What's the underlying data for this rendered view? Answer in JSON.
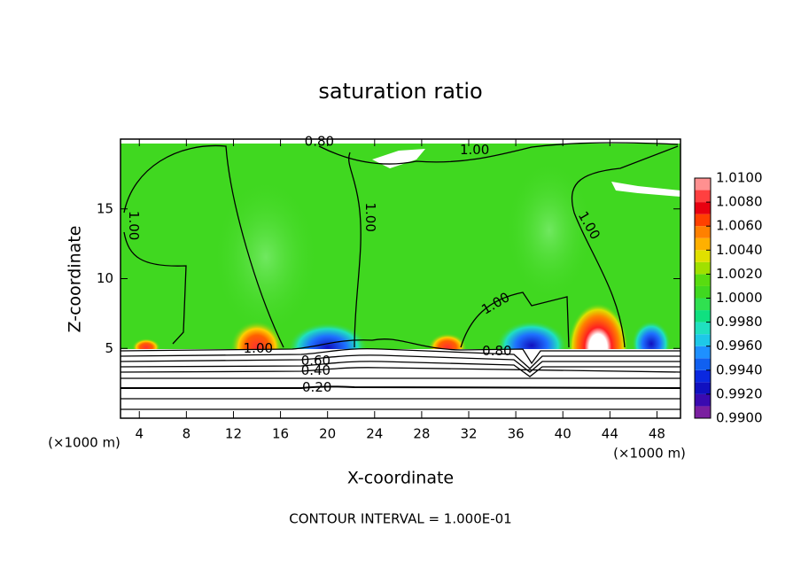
{
  "chart_data": {
    "type": "contour",
    "title": "saturation ratio",
    "xlabel": "X-coordinate",
    "ylabel": "Z-coordinate",
    "x_unit": "(×1000 m)",
    "y_unit": "(×1000 m)",
    "footer": "CONTOUR INTERVAL = 1.000E-01",
    "xlim": [
      2.4,
      50
    ],
    "xticks": [
      4,
      8,
      12,
      16,
      20,
      24,
      28,
      32,
      36,
      40,
      44,
      48
    ],
    "ylim": [
      0,
      20
    ],
    "yticks": [
      5,
      10,
      15
    ],
    "grid": false,
    "contour_labels": [
      {
        "text": "0.80",
        "x": 19.3,
        "y": 19.8
      },
      {
        "text": "1.00",
        "x": 32.5,
        "y": 19.2
      },
      {
        "text": "1.00",
        "x": 3.5,
        "y": 13.8
      },
      {
        "text": "1.00",
        "x": 23.6,
        "y": 14.4
      },
      {
        "text": "1.00",
        "x": 42.2,
        "y": 13.8
      },
      {
        "text": "1.00",
        "x": 34.3,
        "y": 8.2
      },
      {
        "text": "1.00",
        "x": 14.1,
        "y": 5.0
      },
      {
        "text": "0.80",
        "x": 34.4,
        "y": 4.8
      },
      {
        "text": "0.60",
        "x": 19.0,
        "y": 4.1
      },
      {
        "text": "0.40",
        "x": 19.0,
        "y": 3.4
      },
      {
        "text": "0.20",
        "x": 19.1,
        "y": 2.2
      }
    ],
    "colorbar": {
      "lim": [
        0.99,
        1.01
      ],
      "colors": [
        "#7a1fa0",
        "#3a0ab0",
        "#1010c0",
        "#0a28e0",
        "#1060f0",
        "#1e90ff",
        "#1ec8e8",
        "#20e0c0",
        "#10e080",
        "#30e050",
        "#40d820",
        "#58dc10",
        "#a0e000",
        "#e0e000",
        "#ffb000",
        "#ff8000",
        "#ff4000",
        "#e80010",
        "#ff4040",
        "#ff9090"
      ],
      "ticks": [
        {
          "value": 0.99,
          "label": "0.9900"
        },
        {
          "value": 0.992,
          "label": "0.9920"
        },
        {
          "value": 0.994,
          "label": "0.9940"
        },
        {
          "value": 0.996,
          "label": "0.9960"
        },
        {
          "value": 0.998,
          "label": "0.9980"
        },
        {
          "value": 1.0,
          "label": "1.0000"
        },
        {
          "value": 1.002,
          "label": "1.0020"
        },
        {
          "value": 1.004,
          "label": "1.0040"
        },
        {
          "value": 1.006,
          "label": "1.0060"
        },
        {
          "value": 1.008,
          "label": "1.0080"
        },
        {
          "value": 1.01,
          "label": "1.0100"
        }
      ]
    }
  }
}
